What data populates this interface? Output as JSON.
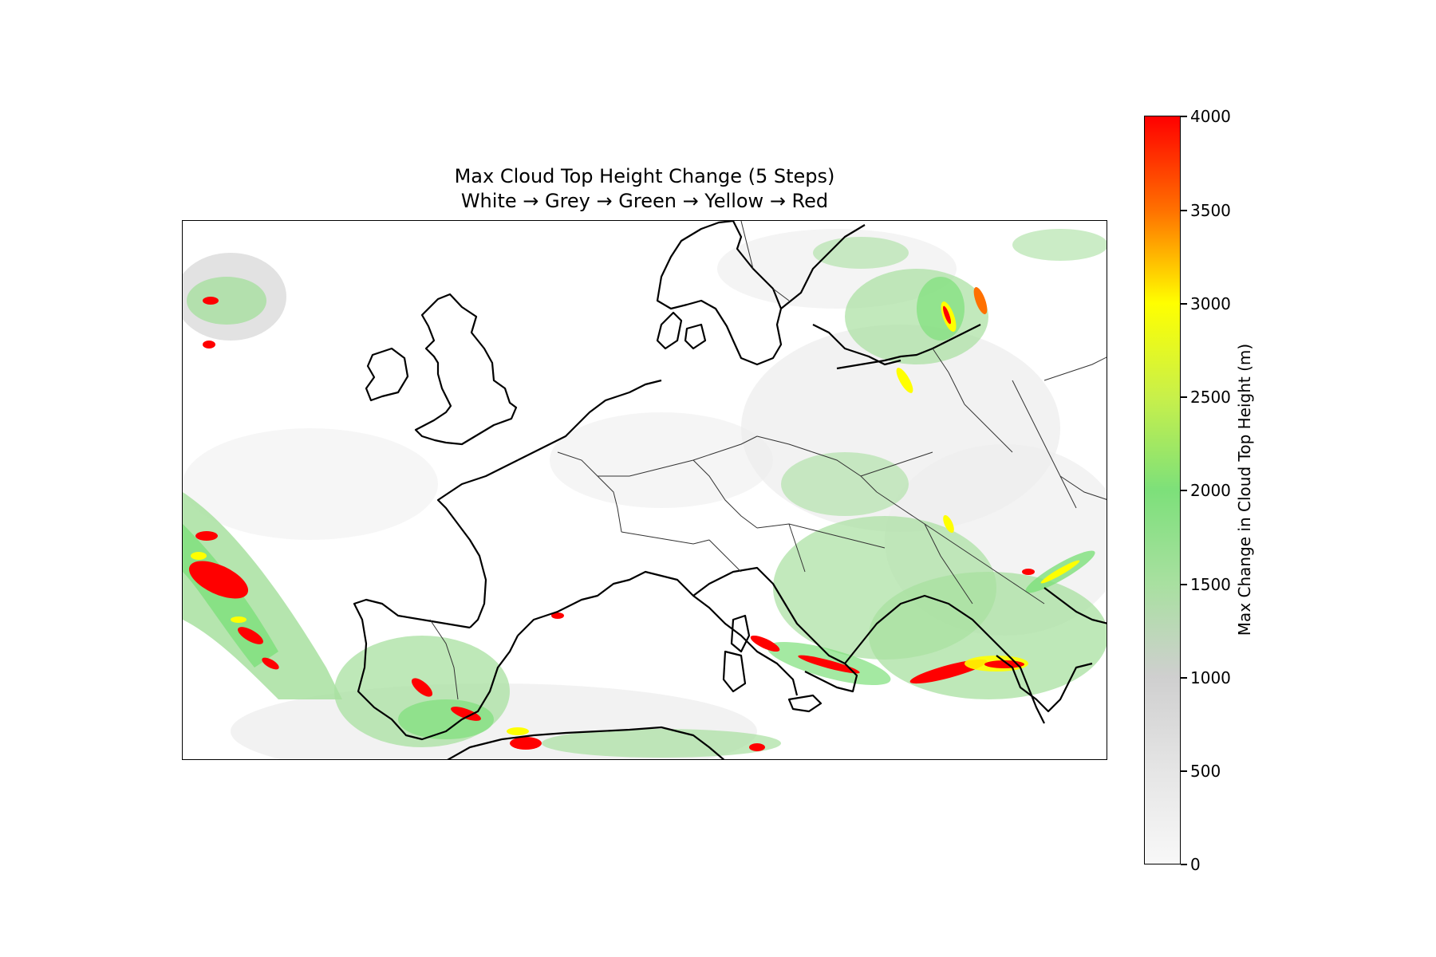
{
  "figure": {
    "title_line1": "Max Cloud Top Height Change (5 Steps)",
    "title_line2": "White → Grey → Green → Yellow → Red"
  },
  "colorbar": {
    "label": "Max Change in Cloud Top Height (m)",
    "range": [
      0,
      4000
    ],
    "ticks": [
      "0",
      "500",
      "1000",
      "1500",
      "2000",
      "2500",
      "3000",
      "3500",
      "4000"
    ],
    "colors": {
      "white": "#f8f8f8",
      "grey": "#cfcfcf",
      "green": "#7de07a",
      "yellow": "#ffff00",
      "red": "#ff0000"
    }
  },
  "map": {
    "region": "Europe",
    "features": [
      "coastlines",
      "country-borders"
    ]
  }
}
